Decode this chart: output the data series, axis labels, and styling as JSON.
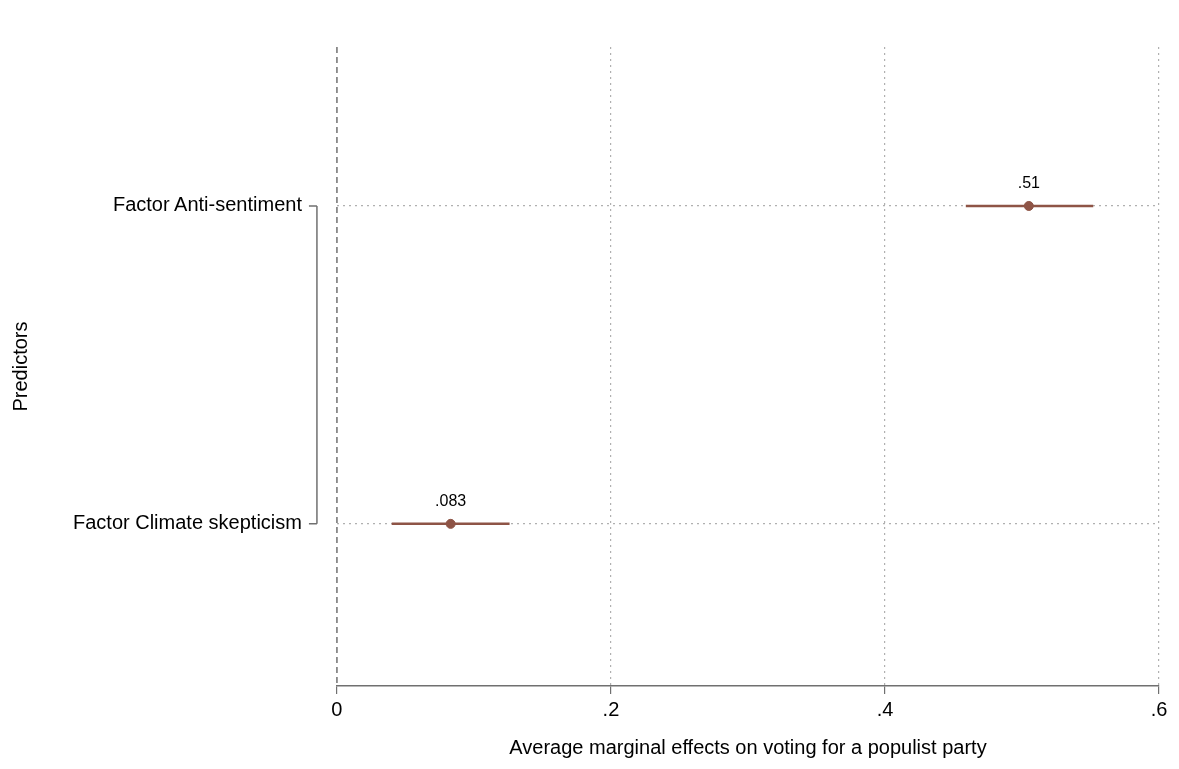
{
  "chart_data": {
    "type": "scatter",
    "orientation": "horizontal",
    "xlabel": "Average marginal effects on voting for a populist party",
    "ylabel": "Predictors",
    "categories": [
      "Factor Anti-sentiment",
      "Factor Climate skepticism"
    ],
    "values": [
      0.505,
      0.083
    ],
    "errors": [
      [
        0.459,
        0.552
      ],
      [
        0.04,
        0.126
      ]
    ],
    "value_labels": [
      ".51",
      ".083"
    ],
    "color": "#8e5446",
    "xlim": [
      0,
      0.6
    ],
    "xticks": [
      0,
      {
        "value": 0.2,
        "label": ".2"
      },
      {
        "value": 0.4,
        "label": ".4"
      },
      {
        "value": 0.6,
        "label": ".6"
      }
    ],
    "ref_lines": [
      {
        "axis": "x",
        "value": 0,
        "line_style": "dashed",
        "color": "#707070"
      }
    ],
    "grid": true,
    "legend": false,
    "marker": "circle"
  }
}
